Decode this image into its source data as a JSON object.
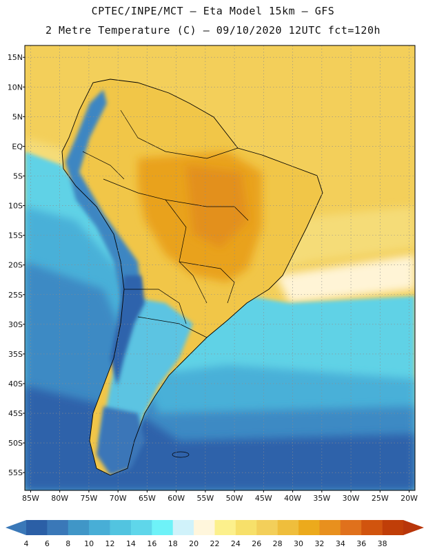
{
  "header": {
    "line1": "CPTEC/INPE/MCT –  Eta Model 15km – GFS",
    "line2": "2 Metre Temperature (C) – 09/10/2020 12UTC fct=120h"
  },
  "axes": {
    "lat_labels": [
      "15N",
      "10N",
      "5N",
      "EQ",
      "5S",
      "10S",
      "15S",
      "20S",
      "25S",
      "30S",
      "35S",
      "40S",
      "45S",
      "50S",
      "55S"
    ],
    "lat_values": [
      15,
      10,
      5,
      0,
      -5,
      -10,
      -15,
      -20,
      -25,
      -30,
      -35,
      -40,
      -45,
      -50,
      -55
    ],
    "lon_labels": [
      "85W",
      "80W",
      "75W",
      "70W",
      "65W",
      "60W",
      "55W",
      "50W",
      "45W",
      "40W",
      "35W",
      "30W",
      "25W",
      "20W"
    ],
    "lon_values": [
      -85,
      -80,
      -75,
      -70,
      -65,
      -60,
      -55,
      -50,
      -45,
      -40,
      -35,
      -30,
      -25,
      -20
    ],
    "lon_range": [
      -86,
      -19
    ],
    "lat_range": [
      -58,
      17
    ],
    "grid": "dotted"
  },
  "colorbar": {
    "labels": [
      "4",
      "6",
      "8",
      "10",
      "12",
      "14",
      "16",
      "18",
      "20",
      "22",
      "24",
      "26",
      "28",
      "30",
      "32",
      "34",
      "36",
      "38"
    ],
    "colors": [
      "#2b5fa6",
      "#3a78b8",
      "#4096c7",
      "#48aed6",
      "#52c4e0",
      "#5fd6ea",
      "#6ef2f8",
      "#d0f2fa",
      "#fff6dc",
      "#fcf08c",
      "#f7e06a",
      "#f3cf5a",
      "#efbe3c",
      "#ecaa1c",
      "#e8901e",
      "#e0711c",
      "#d1540e",
      "#c03e08"
    ],
    "extend": "both"
  },
  "legend_colors": {
    "ocean_south_deep": "#2f62aa",
    "ocean_mid": "#3d82c0",
    "ocean_cool": "#4aa8d4",
    "ocean_warm": "#5bd0e6",
    "tropics": "#f3cf5a",
    "land_hot": "#e9a21e",
    "andes": "#5fb2dc",
    "border": "#000000",
    "gridline": "#8c8c8c"
  }
}
